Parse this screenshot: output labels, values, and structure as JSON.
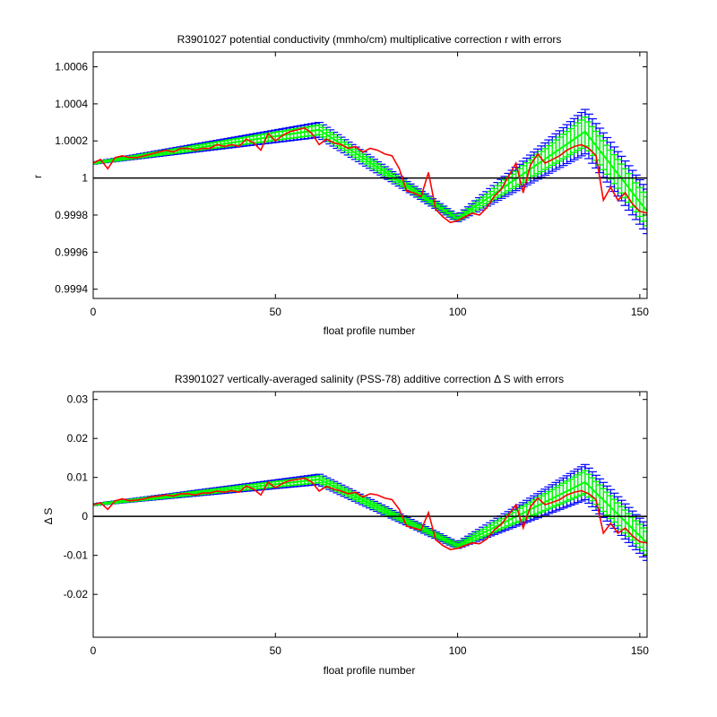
{
  "chart_data": [
    {
      "type": "line",
      "title": "R3901027 potential conductivity (mmho/cm) multiplicative correction r with errors",
      "xlabel": "float profile number",
      "ylabel": "r",
      "xlim": [
        0,
        152
      ],
      "ylim": [
        0.99935,
        1.00068
      ],
      "xticks": [
        0,
        50,
        100,
        150
      ],
      "xtick_labels": [
        "0",
        "50",
        "100",
        "150"
      ],
      "yticks": [
        0.9994,
        0.9996,
        0.9998,
        1.0,
        1.0002,
        1.0004,
        1.0006
      ],
      "ytick_labels": [
        "0.9994",
        "0.9996",
        "0.9998",
        "1",
        "1.0002",
        "1.0004",
        "1.0006"
      ],
      "reference_line": 1.0,
      "grid": false,
      "colors": {
        "error_bars": "#0000ff",
        "fit": "#00ff00",
        "fit_error_bars": "#00cc00",
        "measured": "#ff0000",
        "reference": "#000000"
      },
      "series": [
        {
          "role": "fitted-correction",
          "x": [
            0,
            62,
            100,
            135,
            152
          ],
          "y": [
            1.00008,
            1.00026,
            0.99978,
            1.00025,
            0.99982
          ]
        },
        {
          "role": "error",
          "x": [
            0,
            62,
            100,
            135,
            152
          ],
          "y": [
            5e-06,
            4e-05,
            1.5e-05,
            0.00012,
            0.00012
          ]
        },
        {
          "role": "measured",
          "x": [
            0,
            2,
            4,
            6,
            8,
            10,
            12,
            14,
            16,
            18,
            20,
            22,
            24,
            26,
            28,
            30,
            32,
            34,
            36,
            38,
            40,
            42,
            44,
            46,
            48,
            50,
            52,
            54,
            56,
            58,
            60,
            62,
            64,
            66,
            68,
            70,
            72,
            74,
            76,
            78,
            80,
            82,
            84,
            86,
            88,
            90,
            92,
            94,
            96,
            98,
            100,
            102,
            104,
            106,
            108,
            110,
            112,
            114,
            116,
            118,
            120,
            122,
            124,
            126,
            128,
            130,
            132,
            134,
            136,
            138,
            140,
            142,
            144,
            146,
            148,
            150,
            152
          ],
          "y": [
            1.00008,
            1.0001,
            1.00005,
            1.00011,
            1.00012,
            1.00011,
            1.00011,
            1.00012,
            1.00013,
            1.00014,
            1.00015,
            1.00014,
            1.00016,
            1.00016,
            1.00015,
            1.00016,
            1.00016,
            1.00018,
            1.00017,
            1.00018,
            1.00017,
            1.00021,
            1.00019,
            1.00015,
            1.00024,
            1.0002,
            1.00023,
            1.00025,
            1.00026,
            1.00027,
            1.00024,
            1.00018,
            1.00021,
            1.00019,
            1.00018,
            1.00016,
            1.00017,
            1.00014,
            1.00016,
            1.00015,
            1.00013,
            1.00012,
            1.00005,
            0.99993,
            0.99992,
            0.9999,
            1.00003,
            0.99983,
            0.99979,
            0.99976,
            0.99977,
            0.99979,
            0.99981,
            0.9998,
            0.99984,
            0.9999,
            0.99994,
            1.00001,
            1.00008,
            0.99992,
            1.00007,
            1.00013,
            1.00008,
            1.0001,
            1.00012,
            1.00015,
            1.00017,
            1.00018,
            1.00016,
            1.00012,
            0.99988,
            0.99995,
            0.99988,
            0.99992,
            0.99986,
            0.99982,
            0.99981
          ]
        }
      ]
    },
    {
      "type": "line",
      "title": "R3901027 vertically-averaged salinity (PSS-78) additive correction Δ S with errors",
      "xlabel": "float profile number",
      "ylabel": "Δ S",
      "xlim": [
        0,
        152
      ],
      "ylim": [
        -0.031,
        0.032
      ],
      "xticks": [
        0,
        50,
        100,
        150
      ],
      "xtick_labels": [
        "0",
        "50",
        "100",
        "150"
      ],
      "yticks": [
        -0.02,
        -0.01,
        0,
        0.01,
        0.02,
        0.03
      ],
      "ytick_labels": [
        "-0.02",
        "-0.01",
        "0",
        "0.01",
        "0.02",
        "0.03"
      ],
      "reference_line": 0,
      "grid": false,
      "colors": {
        "error_bars": "#0000ff",
        "fit": "#00ff00",
        "fit_error_bars": "#00cc00",
        "measured": "#ff0000",
        "reference": "#000000"
      },
      "series": [
        {
          "role": "fitted-correction",
          "x": [
            0,
            62,
            100,
            135,
            152
          ],
          "y": [
            0.003,
            0.0095,
            -0.0075,
            0.0088,
            -0.0068
          ]
        },
        {
          "role": "error",
          "x": [
            0,
            62,
            100,
            135,
            152
          ],
          "y": [
            0.0002,
            0.0013,
            0.0007,
            0.0045,
            0.0045
          ]
        },
        {
          "role": "measured",
          "x": [
            0,
            2,
            4,
            6,
            8,
            10,
            12,
            14,
            16,
            18,
            20,
            22,
            24,
            26,
            28,
            30,
            32,
            34,
            36,
            38,
            40,
            42,
            44,
            46,
            48,
            50,
            52,
            54,
            56,
            58,
            60,
            62,
            64,
            66,
            68,
            70,
            72,
            74,
            76,
            78,
            80,
            82,
            84,
            86,
            88,
            90,
            92,
            94,
            96,
            98,
            100,
            102,
            104,
            106,
            108,
            110,
            112,
            114,
            116,
            118,
            120,
            122,
            124,
            126,
            128,
            130,
            132,
            134,
            136,
            138,
            140,
            142,
            144,
            146,
            148,
            150,
            152
          ],
          "y": [
            0.003,
            0.0035,
            0.0018,
            0.004,
            0.0045,
            0.004,
            0.0042,
            0.0045,
            0.005,
            0.0052,
            0.0055,
            0.0052,
            0.0058,
            0.0058,
            0.0055,
            0.006,
            0.006,
            0.0065,
            0.0062,
            0.0066,
            0.0062,
            0.0078,
            0.007,
            0.0055,
            0.0088,
            0.0073,
            0.0085,
            0.0092,
            0.0095,
            0.0098,
            0.0088,
            0.0065,
            0.0077,
            0.007,
            0.0065,
            0.0058,
            0.0062,
            0.005,
            0.0058,
            0.0055,
            0.0047,
            0.0043,
            0.0018,
            -0.0025,
            -0.003,
            -0.0035,
            0.001,
            -0.006,
            -0.0075,
            -0.0085,
            -0.0082,
            -0.0075,
            -0.0068,
            -0.007,
            -0.0058,
            -0.0035,
            -0.002,
            0.0004,
            0.003,
            -0.003,
            0.0025,
            0.0047,
            0.003,
            0.0036,
            0.0043,
            0.0055,
            0.0062,
            0.0066,
            0.0058,
            0.0043,
            -0.0043,
            -0.0018,
            -0.0043,
            -0.003,
            -0.005,
            -0.0065,
            -0.0068
          ]
        }
      ]
    }
  ]
}
